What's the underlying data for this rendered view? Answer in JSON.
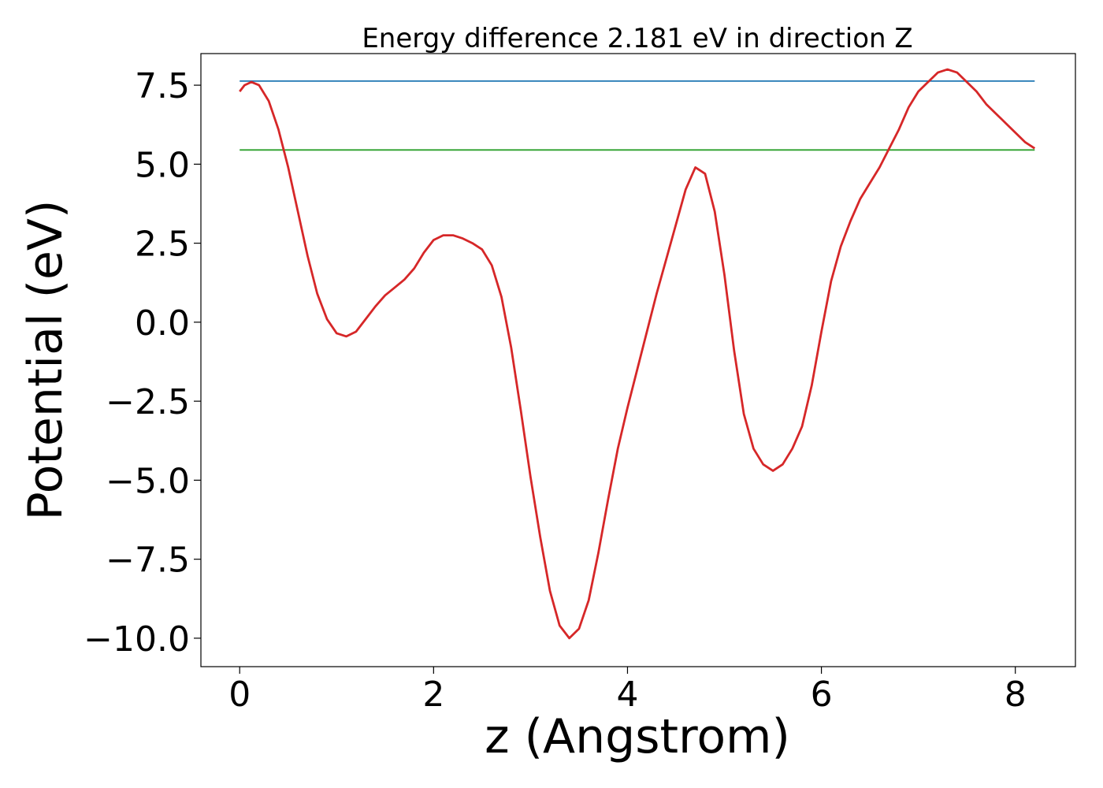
{
  "chart_data": {
    "type": "line",
    "title": "Energy difference 2.181 eV in direction Z",
    "xlabel": "z (Angstrom)",
    "ylabel": "Potential (eV)",
    "xlim": [
      -0.4,
      8.62
    ],
    "ylim": [
      -10.9,
      8.5
    ],
    "xticks": [
      0,
      2,
      4,
      6,
      8
    ],
    "xtick_labels": [
      "0",
      "2",
      "4",
      "6",
      "8"
    ],
    "yticks": [
      7.5,
      5.0,
      2.5,
      0.0,
      -2.5,
      -5.0,
      -7.5,
      -10.0
    ],
    "ytick_labels": [
      "7.5",
      "5.0",
      "2.5",
      "0.0",
      "−2.5",
      "−5.0",
      "−7.5",
      "−10.0"
    ],
    "grid": false,
    "colors": {
      "potential": "#d62728",
      "upper_level": "#1f77b4",
      "lower_level": "#2ca02c"
    },
    "series": [
      {
        "key": "potential",
        "x": [
          0.0,
          0.05,
          0.12,
          0.2,
          0.3,
          0.4,
          0.5,
          0.6,
          0.7,
          0.8,
          0.9,
          1.0,
          1.1,
          1.2,
          1.3,
          1.4,
          1.5,
          1.6,
          1.7,
          1.8,
          1.9,
          2.0,
          2.1,
          2.2,
          2.3,
          2.4,
          2.5,
          2.6,
          2.7,
          2.8,
          2.9,
          3.0,
          3.1,
          3.2,
          3.3,
          3.4,
          3.5,
          3.6,
          3.7,
          3.8,
          3.9,
          4.0,
          4.1,
          4.2,
          4.3,
          4.4,
          4.5,
          4.6,
          4.7,
          4.8,
          4.9,
          5.0,
          5.1,
          5.2,
          5.3,
          5.4,
          5.5,
          5.6,
          5.7,
          5.8,
          5.9,
          6.0,
          6.1,
          6.2,
          6.3,
          6.4,
          6.5,
          6.6,
          6.7,
          6.8,
          6.9,
          7.0,
          7.1,
          7.2,
          7.3,
          7.4,
          7.5,
          7.6,
          7.7,
          7.8,
          7.9,
          8.0,
          8.1,
          8.2
        ],
        "y": [
          7.3,
          7.5,
          7.6,
          7.5,
          7.0,
          6.1,
          4.9,
          3.5,
          2.1,
          0.9,
          0.1,
          -0.35,
          -0.45,
          -0.3,
          0.1,
          0.5,
          0.85,
          1.1,
          1.35,
          1.7,
          2.2,
          2.6,
          2.75,
          2.75,
          2.65,
          2.5,
          2.3,
          1.8,
          0.8,
          -0.8,
          -2.8,
          -4.9,
          -6.8,
          -8.5,
          -9.6,
          -10.0,
          -9.7,
          -8.8,
          -7.3,
          -5.6,
          -4.0,
          -2.7,
          -1.5,
          -0.3,
          0.9,
          2.0,
          3.1,
          4.2,
          4.9,
          4.7,
          3.5,
          1.5,
          -0.9,
          -2.9,
          -4.0,
          -4.5,
          -4.7,
          -4.5,
          -4.0,
          -3.3,
          -2.0,
          -0.3,
          1.3,
          2.4,
          3.2,
          3.9,
          4.4,
          4.9,
          5.5,
          6.1,
          6.8,
          7.3,
          7.6,
          7.9,
          8.0,
          7.9,
          7.6,
          7.3,
          6.9,
          6.6,
          6.3,
          6.0,
          5.7,
          5.5
        ],
        "color": "#d62728"
      },
      {
        "key": "upper_level",
        "x": [
          0.0,
          8.2
        ],
        "y": [
          7.63,
          7.63
        ],
        "color": "#1f77b4"
      },
      {
        "key": "lower_level",
        "x": [
          0.0,
          8.2
        ],
        "y": [
          5.45,
          5.45
        ],
        "color": "#2ca02c"
      }
    ]
  }
}
